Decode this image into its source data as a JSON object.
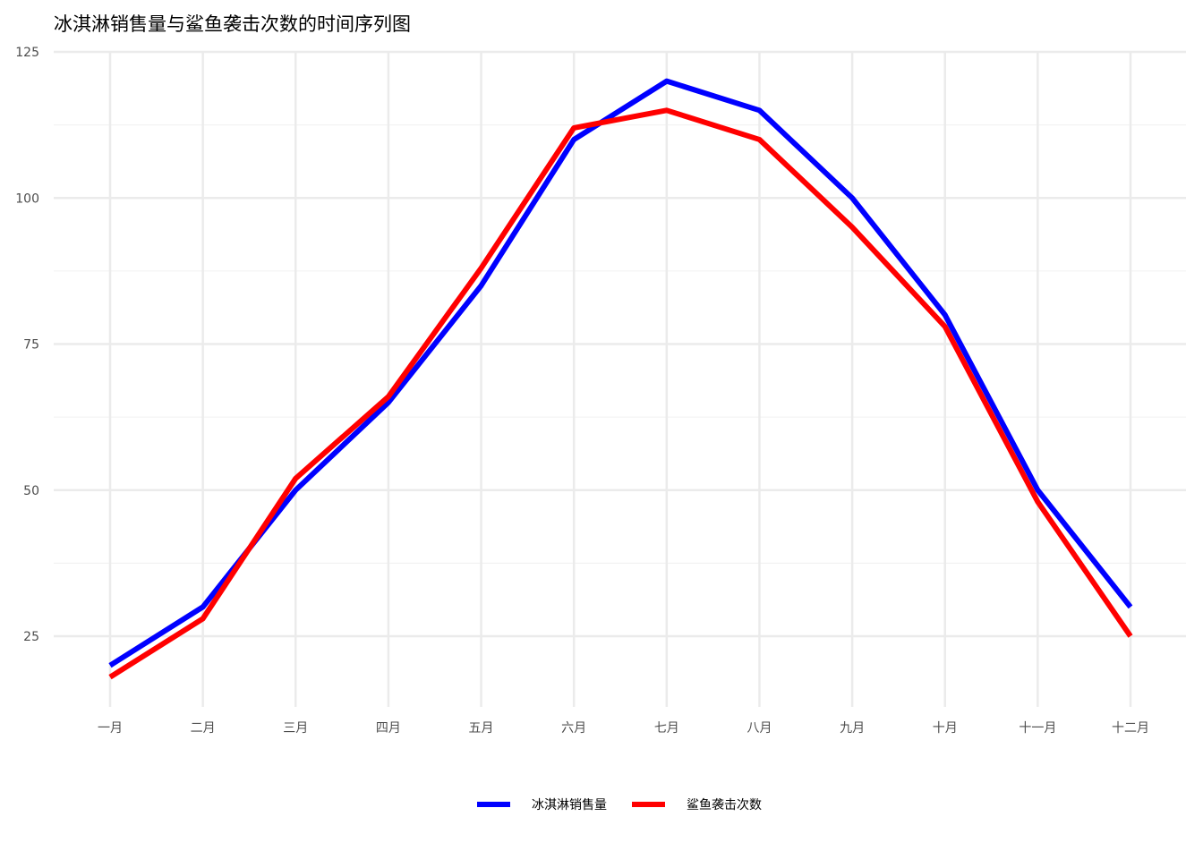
{
  "chart_data": {
    "type": "line",
    "title": "冰淇淋销售量与鲨鱼袭击次数的时间序列图",
    "xlabel": "",
    "ylabel": "",
    "categories": [
      "一月",
      "二月",
      "三月",
      "四月",
      "五月",
      "六月",
      "七月",
      "八月",
      "九月",
      "十月",
      "十一月",
      "十二月"
    ],
    "yticks": [
      25,
      50,
      75,
      100,
      125
    ],
    "ylim": [
      11.5,
      125
    ],
    "grid": true,
    "legend_position": "bottom",
    "series": [
      {
        "name": "冰淇淋销售量",
        "color": "#0000ff",
        "values": [
          20,
          30,
          50,
          65,
          85,
          110,
          120,
          115,
          100,
          80,
          50,
          30
        ]
      },
      {
        "name": "鲨鱼袭击次数",
        "color": "#ff0000",
        "values": [
          18,
          28,
          52,
          66,
          88,
          112,
          115,
          110,
          95,
          78,
          48,
          25
        ]
      }
    ]
  }
}
